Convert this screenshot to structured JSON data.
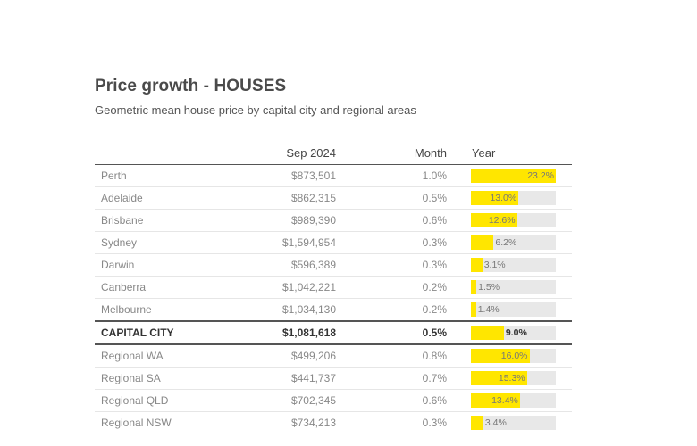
{
  "title": "Price growth - HOUSES",
  "subtitle": "Geometric mean house price by capital city and regional areas",
  "chart_data": {
    "type": "table",
    "columns": [
      "",
      "Sep 2024",
      "Month",
      "Year"
    ],
    "bar_max": 23.2,
    "rows": [
      {
        "name": "Perth",
        "price": "$873,501",
        "month": "1.0%",
        "year": 23.2,
        "year_label": "23.2%",
        "total": false
      },
      {
        "name": "Adelaide",
        "price": "$862,315",
        "month": "0.5%",
        "year": 13.0,
        "year_label": "13.0%",
        "total": false
      },
      {
        "name": "Brisbane",
        "price": "$989,390",
        "month": "0.6%",
        "year": 12.6,
        "year_label": "12.6%",
        "total": false
      },
      {
        "name": "Sydney",
        "price": "$1,594,954",
        "month": "0.3%",
        "year": 6.2,
        "year_label": "6.2%",
        "total": false
      },
      {
        "name": "Darwin",
        "price": "$596,389",
        "month": "0.3%",
        "year": 3.1,
        "year_label": "3.1%",
        "total": false
      },
      {
        "name": "Canberra",
        "price": "$1,042,221",
        "month": "0.2%",
        "year": 1.5,
        "year_label": "1.5%",
        "total": false
      },
      {
        "name": "Melbourne",
        "price": "$1,034,130",
        "month": "0.2%",
        "year": 1.4,
        "year_label": "1.4%",
        "total": false
      },
      {
        "name": "CAPITAL CITY",
        "price": "$1,081,618",
        "month": "0.5%",
        "year": 9.0,
        "year_label": "9.0%",
        "total": true
      },
      {
        "name": "Regional WA",
        "price": "$499,206",
        "month": "0.8%",
        "year": 16.0,
        "year_label": "16.0%",
        "total": false
      },
      {
        "name": "Regional SA",
        "price": "$441,737",
        "month": "0.7%",
        "year": 15.3,
        "year_label": "15.3%",
        "total": false
      },
      {
        "name": "Regional QLD",
        "price": "$702,345",
        "month": "0.6%",
        "year": 13.4,
        "year_label": "13.4%",
        "total": false
      },
      {
        "name": "Regional NSW",
        "price": "$734,213",
        "month": "0.3%",
        "year": 3.4,
        "year_label": "3.4%",
        "total": false
      }
    ],
    "colors": {
      "bar": "#ffe600",
      "track": "#e8e8e8"
    }
  }
}
